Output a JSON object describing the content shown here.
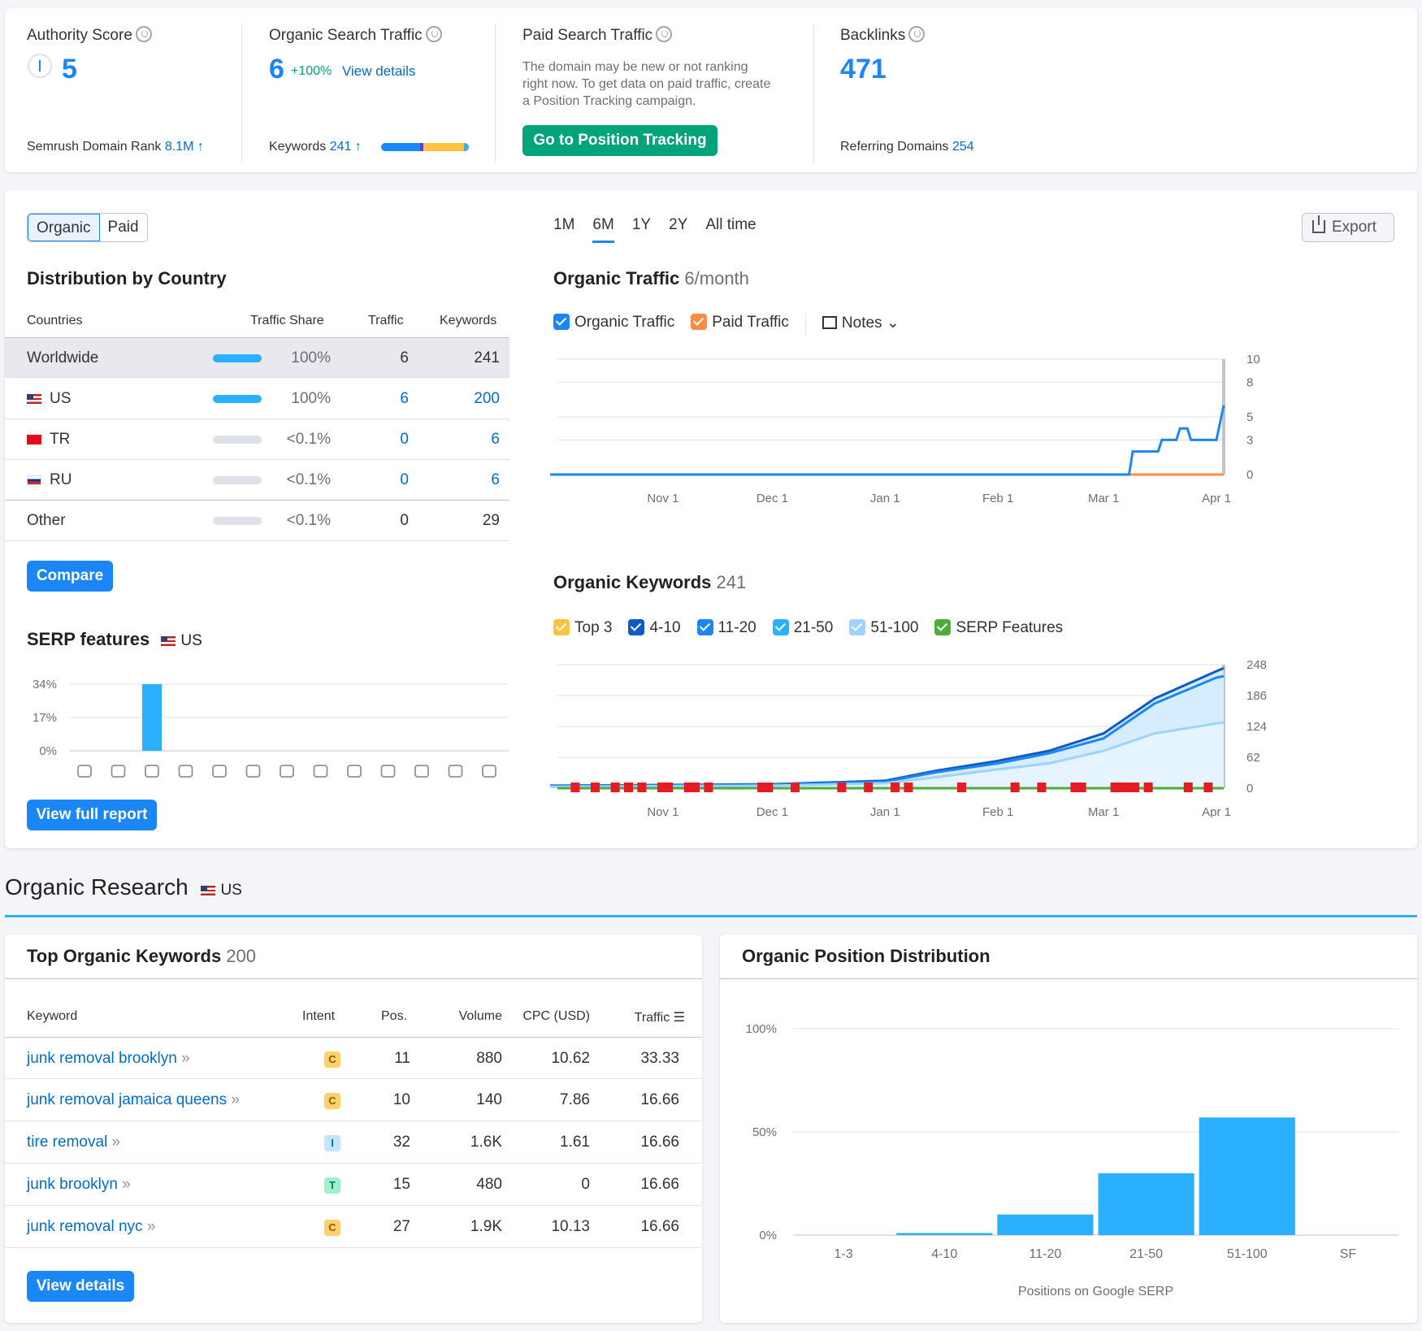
{
  "summary": {
    "authority": {
      "title": "Authority Score",
      "value": "5",
      "rank_label": "Semrush Domain Rank",
      "rank_value": "8.1M"
    },
    "organic": {
      "title": "Organic Search Traffic",
      "value": "6",
      "change": "+100%",
      "details_link": "View details",
      "keywords_label": "Keywords",
      "keywords_value": "241"
    },
    "paid": {
      "title": "Paid Search Traffic",
      "note": "The domain may be new or not ranking right now. To get data on paid traffic, create a Position Tracking campaign.",
      "button": "Go to Position Tracking"
    },
    "backlinks": {
      "title": "Backlinks",
      "value": "471",
      "referring_label": "Referring Domains",
      "referring_value": "254"
    }
  },
  "toggle": {
    "organic": "Organic",
    "paid": "Paid"
  },
  "periods": [
    "1M",
    "6M",
    "1Y",
    "2Y",
    "All time"
  ],
  "export_label": "Export",
  "distribution": {
    "title": "Distribution by Country",
    "headers": {
      "countries": "Countries",
      "share": "Traffic Share",
      "traffic": "Traffic",
      "keywords": "Keywords"
    },
    "rows": [
      {
        "country": "Worldwide",
        "share": "100%",
        "share_fraction": 1.0,
        "traffic": "6",
        "keywords": "241"
      },
      {
        "country": "US",
        "share": "100%",
        "share_fraction": 1.0,
        "traffic": "6",
        "keywords": "200"
      },
      {
        "country": "TR",
        "share": "<0.1%",
        "share_fraction": 0.0,
        "traffic": "0",
        "keywords": "6"
      },
      {
        "country": "RU",
        "share": "<0.1%",
        "share_fraction": 0.0,
        "traffic": "0",
        "keywords": "6"
      },
      {
        "country": "Other",
        "share": "<0.1%",
        "share_fraction": 0.0,
        "traffic": "0",
        "keywords": "29"
      }
    ],
    "compare_button": "Compare"
  },
  "serp": {
    "title": "SERP features",
    "country": "US",
    "yticks": [
      "34%",
      "17%",
      "0%"
    ],
    "button": "View full report",
    "icons": [
      "crown-icon",
      "link-icon",
      "star-icon",
      "image-icon",
      "video-icon",
      "video-carousel-icon",
      "play-icon",
      "faq-icon",
      "location-icon",
      "education-icon",
      "news-icon",
      "jobs-icon",
      "x-twitter-icon"
    ]
  },
  "organic_traffic": {
    "title": "Organic Traffic",
    "subtitle": "6/month",
    "legend": {
      "organic": "Organic Traffic",
      "paid": "Paid Traffic",
      "notes": "Notes"
    }
  },
  "organic_keywords": {
    "title": "Organic Keywords",
    "count": "241",
    "legend": [
      "Top 3",
      "4-10",
      "11-20",
      "21-50",
      "51-100",
      "SERP Features"
    ]
  },
  "research": {
    "title": "Organic Research",
    "country": "US"
  },
  "top_keywords": {
    "title": "Top Organic Keywords",
    "count": "200",
    "headers": {
      "keyword": "Keyword",
      "intent": "Intent",
      "pos": "Pos.",
      "volume": "Volume",
      "cpc": "CPC (USD)",
      "traffic": "Traffic"
    },
    "rows": [
      {
        "keyword": "junk removal brooklyn",
        "intent": "C",
        "pos": "11",
        "volume": "880",
        "cpc": "10.62",
        "traffic": "33.33"
      },
      {
        "keyword": "junk removal jamaica queens",
        "intent": "C",
        "pos": "10",
        "volume": "140",
        "cpc": "7.86",
        "traffic": "16.66"
      },
      {
        "keyword": "tire removal",
        "intent": "I",
        "pos": "32",
        "volume": "1.6K",
        "cpc": "1.61",
        "traffic": "16.66"
      },
      {
        "keyword": "junk brooklyn",
        "intent": "T",
        "pos": "15",
        "volume": "480",
        "cpc": "0",
        "traffic": "16.66"
      },
      {
        "keyword": "junk removal nyc",
        "intent": "C",
        "pos": "27",
        "volume": "1.9K",
        "cpc": "10.13",
        "traffic": "16.66"
      }
    ],
    "button": "View details"
  },
  "position_distribution": {
    "title": "Organic Position Distribution"
  },
  "colors": {
    "accent": "#1b86f5",
    "green": "#00a47a",
    "bar": "#2ab0ff",
    "paid": "#ff8c42"
  },
  "chart_data": [
    {
      "type": "line",
      "title": "Organic Traffic",
      "x_ticks": [
        "Nov 1",
        "Dec 1",
        "Jan 1",
        "Feb 1",
        "Mar 1",
        "Apr 1"
      ],
      "y_ticks": [
        0,
        3,
        5,
        8,
        10
      ],
      "ylim": [
        0,
        10
      ],
      "series": [
        {
          "name": "Organic Traffic",
          "points": [
            [
              "Oct 1",
              0
            ],
            [
              "Mar 8",
              0
            ],
            [
              "Mar 9",
              2
            ],
            [
              "Mar 16",
              2
            ],
            [
              "Mar 17",
              3
            ],
            [
              "Mar 21",
              3
            ],
            [
              "Mar 22",
              4
            ],
            [
              "Mar 24",
              4
            ],
            [
              "Mar 25",
              3
            ],
            [
              "Apr 1",
              3
            ],
            [
              "Apr 3",
              6
            ]
          ]
        },
        {
          "name": "Paid Traffic",
          "points": [
            [
              "Oct 1",
              0
            ],
            [
              "Apr 3",
              0
            ]
          ]
        }
      ]
    },
    {
      "type": "area",
      "title": "Organic Keywords",
      "x_ticks": [
        "Nov 1",
        "Dec 1",
        "Jan 1",
        "Feb 1",
        "Mar 1",
        "Apr 1"
      ],
      "y_ticks": [
        0,
        62,
        124,
        186,
        248
      ],
      "ylim": [
        0,
        248
      ],
      "series": [
        {
          "name": "4-10",
          "points": [
            [
              "Oct 1",
              5
            ],
            [
              "Dec 1",
              8
            ],
            [
              "Jan 1",
              15
            ],
            [
              "Jan 15",
              35
            ],
            [
              "Feb 1",
              55
            ],
            [
              "Feb 15",
              75
            ],
            [
              "Mar 1",
              110
            ],
            [
              "Mar 15",
              180
            ],
            [
              "Apr 1",
              235
            ],
            [
              "Apr 3",
              241
            ]
          ]
        },
        {
          "name": "11-20",
          "points": [
            [
              "Oct 1",
              4
            ],
            [
              "Dec 1",
              7
            ],
            [
              "Jan 1",
              13
            ],
            [
              "Jan 15",
              32
            ],
            [
              "Feb 1",
              50
            ],
            [
              "Feb 15",
              70
            ],
            [
              "Mar 1",
              100
            ],
            [
              "Mar 15",
              170
            ],
            [
              "Apr 1",
              222
            ],
            [
              "Apr 3",
              225
            ]
          ]
        },
        {
          "name": "21-50",
          "points": [
            [
              "Oct 1",
              3
            ],
            [
              "Dec 1",
              5
            ],
            [
              "Jan 1",
              10
            ],
            [
              "Jan 15",
              22
            ],
            [
              "Feb 1",
              38
            ],
            [
              "Feb 15",
              50
            ],
            [
              "Mar 1",
              75
            ],
            [
              "Mar 15",
              110
            ],
            [
              "Apr 1",
              130
            ],
            [
              "Apr 3",
              132
            ]
          ]
        }
      ]
    },
    {
      "type": "bar",
      "title": "SERP features",
      "categories": [
        "crown",
        "link",
        "star",
        "image",
        "video",
        "video carousel",
        "play",
        "faq",
        "location",
        "education",
        "news",
        "jobs",
        "x"
      ],
      "values": [
        0,
        0,
        34,
        0,
        0,
        0,
        0,
        0,
        0,
        0,
        0,
        0,
        0
      ],
      "yticks": [
        "0%",
        "17%",
        "34%"
      ],
      "ylim": [
        0,
        34
      ]
    },
    {
      "type": "bar",
      "title": "Organic Position Distribution",
      "categories": [
        "1-3",
        "4-10",
        "11-20",
        "21-50",
        "51-100",
        "SF"
      ],
      "values": [
        0,
        1,
        10,
        30,
        57,
        0
      ],
      "yticks": [
        "0%",
        "50%",
        "100%"
      ],
      "ylim": [
        0,
        100
      ],
      "xlabel": "Positions on Google SERP"
    }
  ]
}
